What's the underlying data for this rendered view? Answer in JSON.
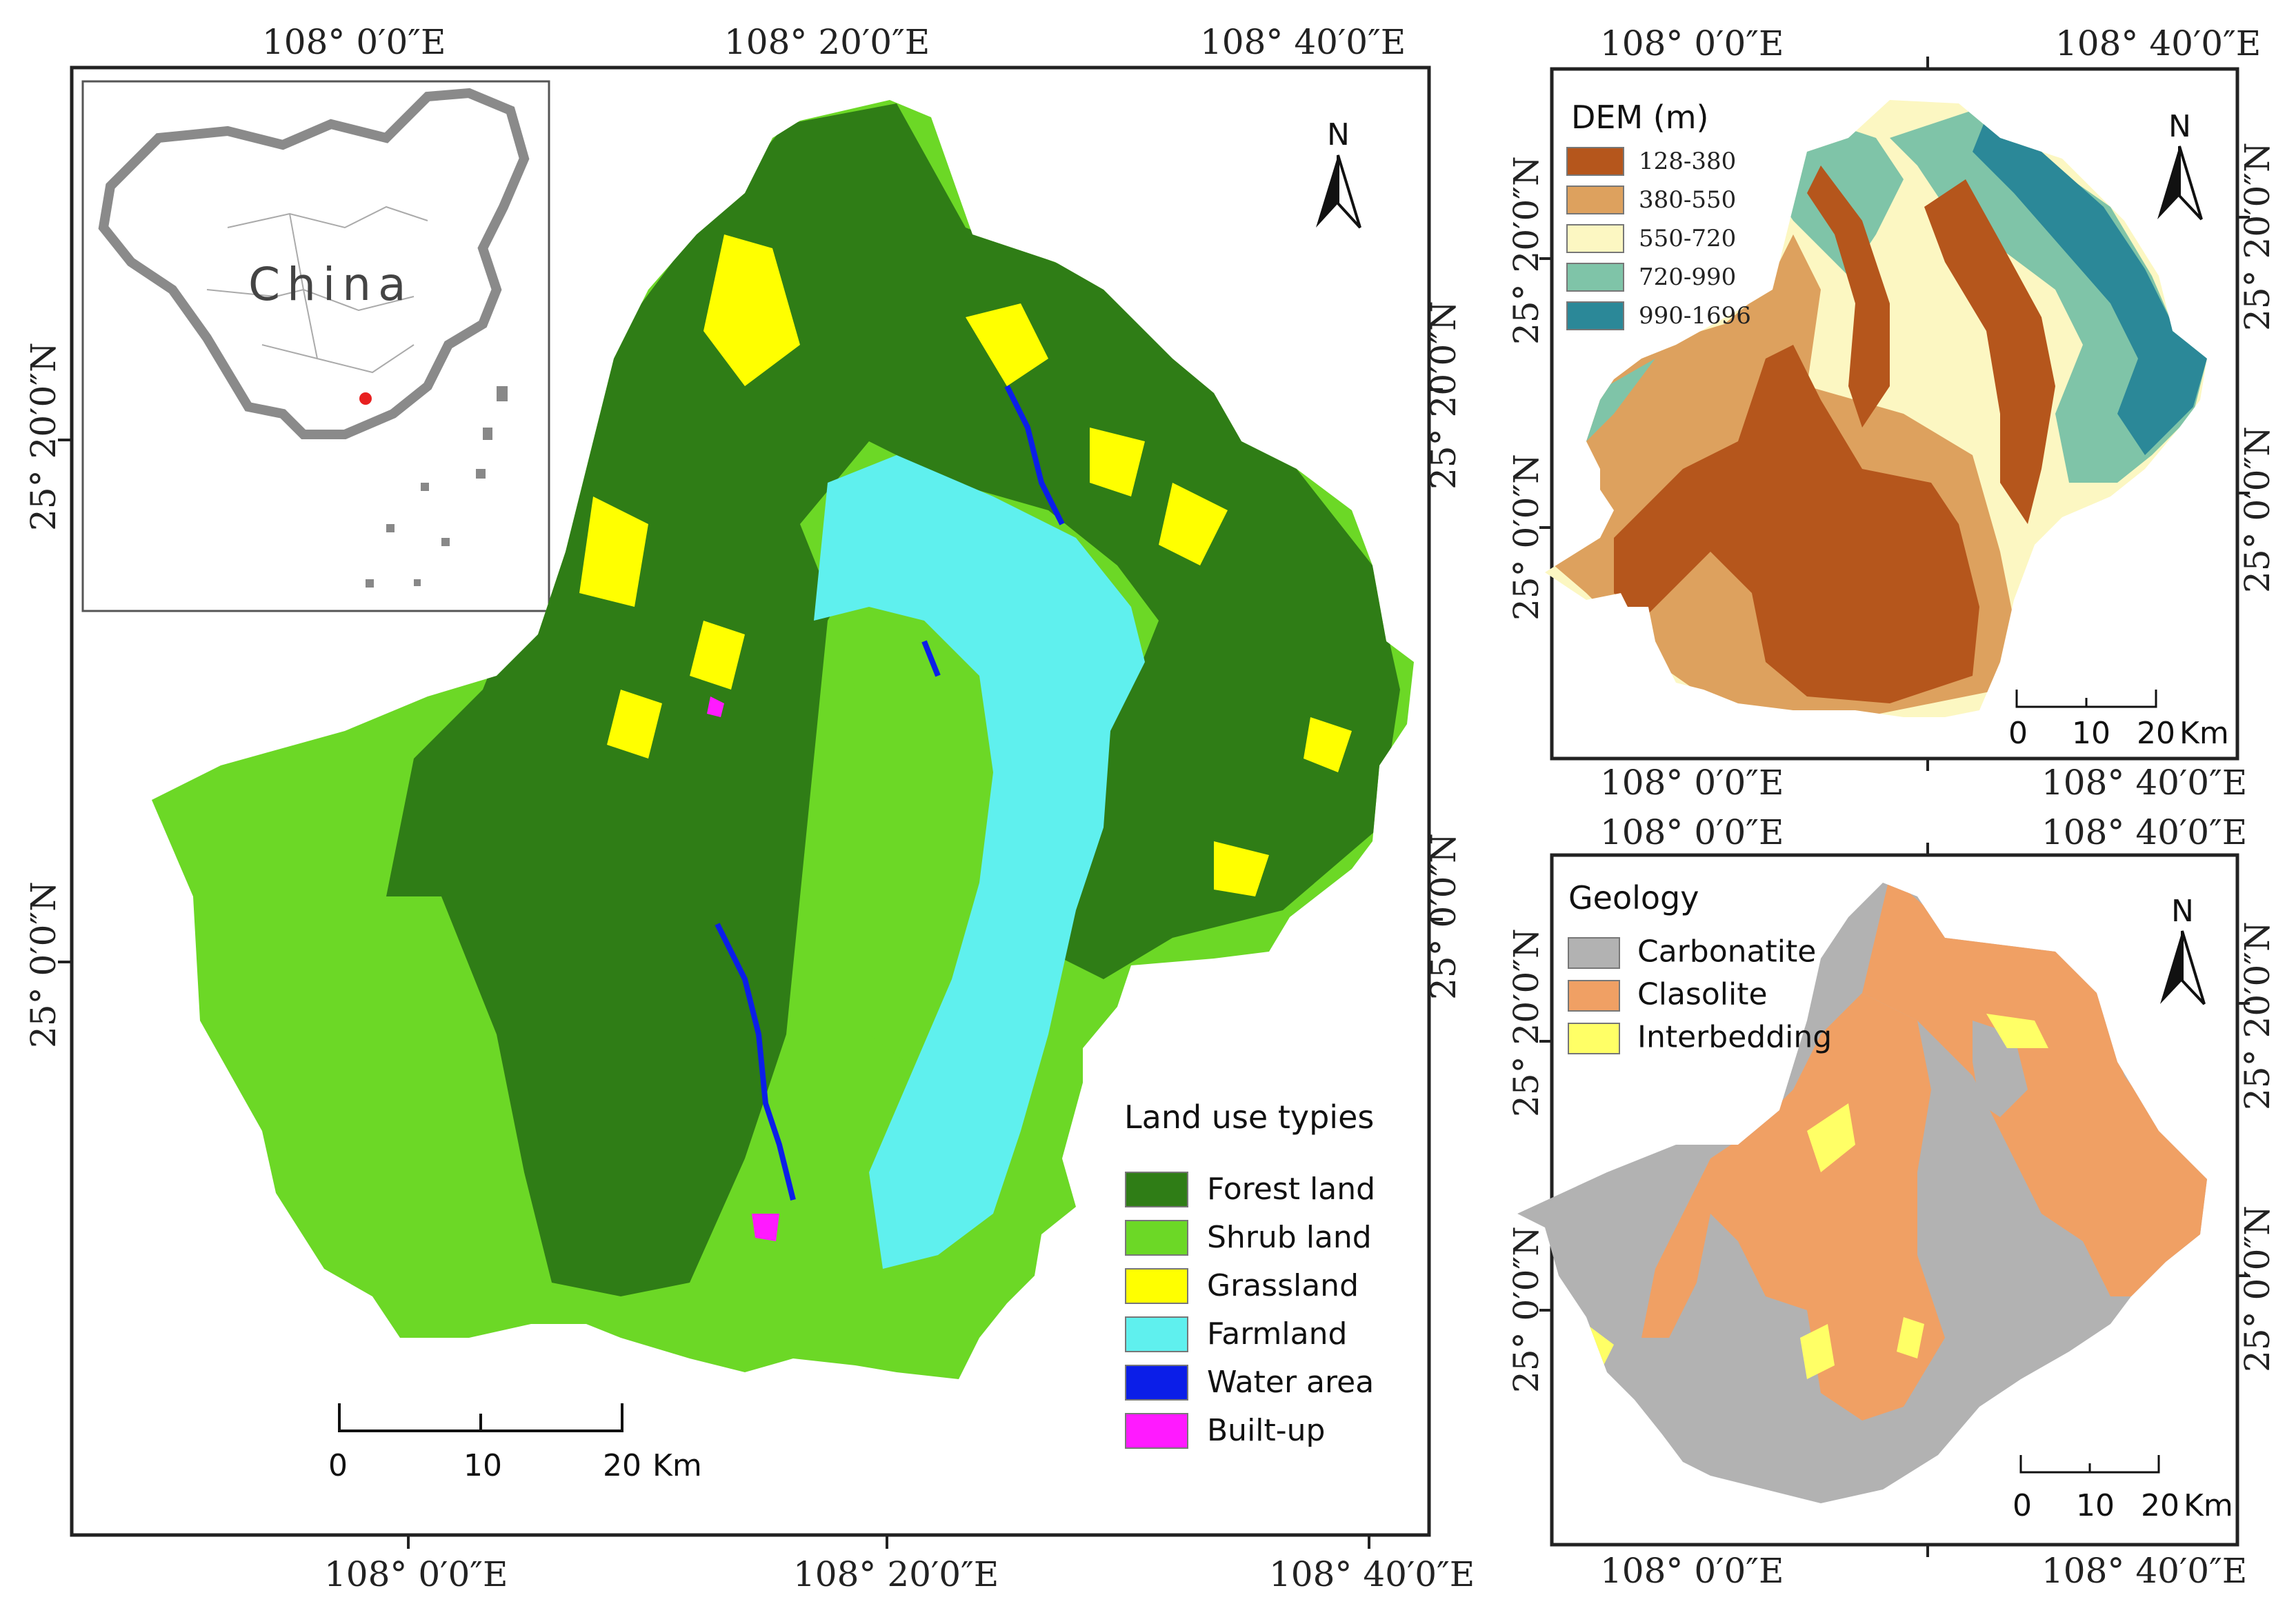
{
  "main_map": {
    "coords_top": [
      "108° 0′0″E",
      "108° 20′0″E",
      "108° 40′0″E"
    ],
    "coords_bottom": [
      "108° 0′0″E",
      "108° 20′0″E",
      "108° 40′0″E"
    ],
    "coords_left": [
      "25° 20′0″N",
      "25° 0′0″N"
    ],
    "coords_right": [
      "25° 20′0″N",
      "25° 0′0″N"
    ],
    "north_label": "N",
    "inset_label": "China",
    "legend": {
      "title": "Land use typies",
      "items": [
        {
          "label": "Forest land",
          "color": "#2f7d16"
        },
        {
          "label": "Shrub land",
          "color": "#6cd826"
        },
        {
          "label": "Grassland",
          "color": "#ffff00"
        },
        {
          "label": "Farmland",
          "color": "#5ff0ee"
        },
        {
          "label": "Water area",
          "color": "#0b1ee8"
        },
        {
          "label": "Built-up",
          "color": "#ff1aff"
        }
      ]
    },
    "scale": {
      "ticks": [
        "0",
        "10",
        "20"
      ],
      "unit": "Km"
    }
  },
  "dem_map": {
    "coords_top": [
      "108° 0′0″E",
      "108° 40′0″E"
    ],
    "coords_bottom": [
      "108° 0′0″E",
      "108° 40′0″E"
    ],
    "coords_left": [
      "25° 20′0″N",
      "25° 0′0″N"
    ],
    "coords_right": [
      "25° 20′0″N",
      "25° 0′0″N"
    ],
    "north_label": "N",
    "legend": {
      "title": "DEM (m)",
      "items": [
        {
          "label": "128-380",
          "color": "#b5561c"
        },
        {
          "label": "380-550",
          "color": "#dda15e"
        },
        {
          "label": "550-720",
          "color": "#fcf7c2"
        },
        {
          "label": "720-990",
          "color": "#7fc4a8"
        },
        {
          "label": "990-1696",
          "color": "#2b8898"
        }
      ]
    },
    "scale": {
      "ticks": [
        "0",
        "10",
        "20"
      ],
      "unit": "Km"
    }
  },
  "geology_map": {
    "coords_top": [
      "108° 0′0″E",
      "108° 40′0″E"
    ],
    "coords_bottom": [
      "108° 0′0″E",
      "108° 40′0″E"
    ],
    "coords_left": [
      "25° 20′0″N",
      "25° 0′0″N"
    ],
    "coords_right": [
      "25° 20′0″N",
      "25° 0′0″N"
    ],
    "north_label": "N",
    "legend": {
      "title": "Geology",
      "items": [
        {
          "label": "Carbonatite",
          "color": "#b2b2b2"
        },
        {
          "label": "Clasolite",
          "color": "#f0a064"
        },
        {
          "label": "Interbedding",
          "color": "#ffff66"
        }
      ]
    },
    "scale": {
      "ticks": [
        "0",
        "10",
        "20"
      ],
      "unit": "Km"
    }
  }
}
